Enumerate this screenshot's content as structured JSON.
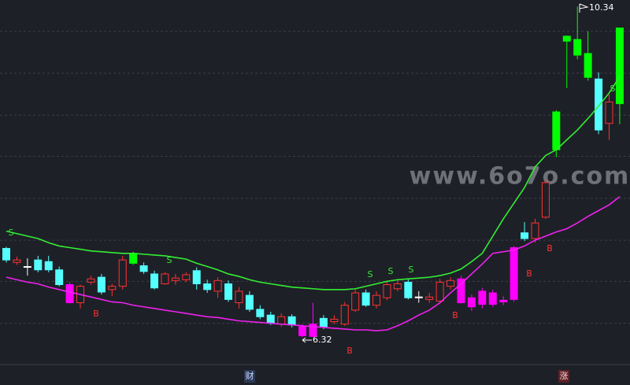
{
  "chart_data": {
    "type": "candlestick",
    "ylim": [
      5.74,
      10.42
    ],
    "yticks": [
      6.49,
      7.0,
      7.5,
      8.01,
      8.52,
      9.02,
      9.53,
      10.04
    ],
    "grid": true,
    "up_color": "#ff3232",
    "candles": [
      [
        7.4,
        7.42,
        7.23,
        7.26
      ],
      [
        7.23,
        7.3,
        7.2,
        7.26
      ],
      [
        7.18,
        7.28,
        7.07,
        7.18
      ],
      [
        7.26,
        7.31,
        7.11,
        7.14
      ],
      [
        7.24,
        7.31,
        7.11,
        7.14
      ],
      [
        7.14,
        7.18,
        6.94,
        6.96
      ],
      [
        6.96,
        6.99,
        6.73,
        6.74
      ],
      [
        6.74,
        6.96,
        6.67,
        6.94
      ],
      [
        6.99,
        7.07,
        6.96,
        7.03
      ],
      [
        7.05,
        7.09,
        6.84,
        6.87
      ],
      [
        6.9,
        6.97,
        6.82,
        6.94
      ],
      [
        6.94,
        7.31,
        6.9,
        7.26
      ],
      [
        7.22,
        7.36,
        7.2,
        7.34
      ],
      [
        7.19,
        7.23,
        7.09,
        7.12
      ],
      [
        7.09,
        7.13,
        6.9,
        6.92
      ],
      [
        6.97,
        7.11,
        6.96,
        7.09
      ],
      [
        7.01,
        7.09,
        6.96,
        7.04
      ],
      [
        7.02,
        7.11,
        6.99,
        7.08
      ],
      [
        7.13,
        7.17,
        6.9,
        6.97
      ],
      [
        6.97,
        7.02,
        6.86,
        6.9
      ],
      [
        6.88,
        7.05,
        6.8,
        7.01
      ],
      [
        6.97,
        7.01,
        6.75,
        6.78
      ],
      [
        6.74,
        6.93,
        6.67,
        6.88
      ],
      [
        6.83,
        6.88,
        6.63,
        6.66
      ],
      [
        6.66,
        6.71,
        6.54,
        6.57
      ],
      [
        6.59,
        6.63,
        6.47,
        6.49
      ],
      [
        6.48,
        6.61,
        6.45,
        6.57
      ],
      [
        6.57,
        6.6,
        6.44,
        6.47
      ],
      [
        6.45,
        6.48,
        6.32,
        6.34
      ],
      [
        6.48,
        6.74,
        6.33,
        6.33
      ],
      [
        6.55,
        6.59,
        6.42,
        6.45
      ],
      [
        6.51,
        6.59,
        6.48,
        6.54
      ],
      [
        6.48,
        6.75,
        6.46,
        6.71
      ],
      [
        6.65,
        6.9,
        6.63,
        6.86
      ],
      [
        6.86,
        6.9,
        6.69,
        6.71
      ],
      [
        6.71,
        6.88,
        6.67,
        6.83
      ],
      [
        6.8,
        7.0,
        6.77,
        6.96
      ],
      [
        6.91,
        7.02,
        6.88,
        6.97
      ],
      [
        6.99,
        7.03,
        6.78,
        6.8
      ],
      [
        6.81,
        6.88,
        6.74,
        6.81
      ],
      [
        6.78,
        6.86,
        6.74,
        6.81
      ],
      [
        6.76,
        7.03,
        6.73,
        6.99
      ],
      [
        6.94,
        7.05,
        6.9,
        7.01
      ],
      [
        7.03,
        7.07,
        6.73,
        6.74
      ],
      [
        6.8,
        6.84,
        6.64,
        6.69
      ],
      [
        6.88,
        6.92,
        6.67,
        6.72
      ],
      [
        6.86,
        6.9,
        6.69,
        6.72
      ],
      [
        6.77,
        6.82,
        6.71,
        6.75
      ],
      [
        6.78,
        7.43,
        6.75,
        7.41
      ],
      [
        7.59,
        7.72,
        7.49,
        7.52
      ],
      [
        7.52,
        7.76,
        7.47,
        7.71
      ],
      [
        7.78,
        8.24,
        7.76,
        8.2
      ],
      [
        8.6,
        9.08,
        8.51,
        9.06
      ],
      [
        9.92,
        9.99,
        9.35,
        9.98
      ],
      [
        9.75,
        10.34,
        9.7,
        9.94
      ],
      [
        9.48,
        10.04,
        9.44,
        9.77
      ],
      [
        9.46,
        9.54,
        8.79,
        8.84
      ],
      [
        8.92,
        9.27,
        8.72,
        9.18
      ],
      [
        9.16,
        10.08,
        8.91,
        10.08
      ]
    ],
    "candle_colors": [
      "#54ffff",
      "#ff3232",
      "#ffffff",
      "#54ffff",
      "#54ffff",
      "#54ffff",
      "#ff00ff",
      "#ff3232",
      "#ff3232",
      "#54ffff",
      "#ff3232",
      "#ff3232",
      "#00ff00",
      "#54ffff",
      "#54ffff",
      "#ff3232",
      "#ff3232",
      "#ff3232",
      "#54ffff",
      "#54ffff",
      "#ff3232",
      "#54ffff",
      "#ff3232",
      "#54ffff",
      "#54ffff",
      "#54ffff",
      "#ff3232",
      "#54ffff",
      "#ff00ff",
      "#ff00ff",
      "#54ffff",
      "#ff3232",
      "#ff3232",
      "#ff3232",
      "#54ffff",
      "#ff3232",
      "#ff3232",
      "#ff3232",
      "#54ffff",
      "#ffffff",
      "#ff3232",
      "#ff3232",
      "#ff3232",
      "#ff00ff",
      "#ff00ff",
      "#ff00ff",
      "#ff00ff",
      "#ff00ff",
      "#ff00ff",
      "#54ffff",
      "#ff3232",
      "#ff3232",
      "#00ff00",
      "#00ff00",
      "#00ff00",
      "#00ff00",
      "#54ffff",
      "#ff3232",
      "#00ff00"
    ],
    "series": [
      {
        "color": "#33ee33",
        "values": [
          7.61,
          7.58,
          7.55,
          7.52,
          7.47,
          7.43,
          7.41,
          7.39,
          7.37,
          7.36,
          7.35,
          7.34,
          7.34,
          7.33,
          7.32,
          7.31,
          7.29,
          7.27,
          7.22,
          7.18,
          7.14,
          7.09,
          7.06,
          7.02,
          6.99,
          6.97,
          6.95,
          6.93,
          6.92,
          6.91,
          6.9,
          6.9,
          6.9,
          6.91,
          6.94,
          6.97,
          7.0,
          7.02,
          7.03,
          7.04,
          7.05,
          7.07,
          7.1,
          7.15,
          7.24,
          7.34,
          7.55,
          7.76,
          7.95,
          8.14,
          8.39,
          8.53,
          8.6,
          8.72,
          8.84,
          8.98,
          9.13,
          9.29,
          9.49
        ]
      },
      {
        "color": "#ee22ee",
        "values": [
          7.05,
          7.02,
          6.99,
          6.97,
          6.93,
          6.9,
          6.87,
          6.84,
          6.81,
          6.78,
          6.75,
          6.74,
          6.71,
          6.69,
          6.67,
          6.65,
          6.63,
          6.61,
          6.59,
          6.57,
          6.56,
          6.54,
          6.52,
          6.51,
          6.5,
          6.49,
          6.48,
          6.47,
          6.46,
          6.45,
          6.44,
          6.43,
          6.42,
          6.41,
          6.41,
          6.4,
          6.41,
          6.46,
          6.52,
          6.59,
          6.65,
          6.74,
          6.86,
          6.97,
          7.09,
          7.21,
          7.34,
          7.36,
          7.38,
          7.43,
          7.5,
          7.55,
          7.6,
          7.64,
          7.71,
          7.79,
          7.86,
          7.93,
          8.03
        ]
      }
    ],
    "annotations": [
      "S",
      "S",
      "S",
      "S",
      "S",
      "S",
      "B",
      "B",
      "B",
      "B",
      "B"
    ],
    "markers": [
      "财",
      "涨"
    ],
    "watermark": "www.6o7o.com"
  }
}
